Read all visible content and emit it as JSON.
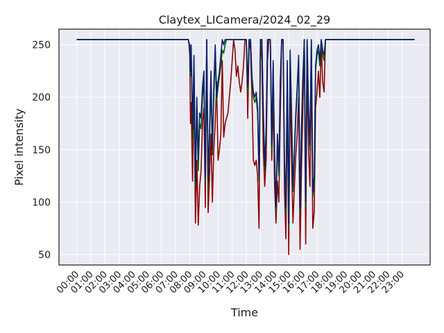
{
  "chart_data": {
    "type": "line",
    "title": "Claytex_LICamera/2024_02_29",
    "xlabel": "Time",
    "ylabel": "Pixel intensity",
    "xlim_hours": [
      -1.25,
      25.0
    ],
    "ylim": [
      40,
      265
    ],
    "grid": true,
    "legend": "none",
    "x_tick_labels": [
      "00:00",
      "01:00",
      "02:00",
      "03:00",
      "04:00",
      "05:00",
      "06:00",
      "07:00",
      "08:00",
      "09:00",
      "10:00",
      "11:00",
      "12:00",
      "13:00",
      "14:00",
      "15:00",
      "16:00",
      "17:00",
      "18:00",
      "19:00",
      "20:00",
      "21:00",
      "22:00",
      "23:00"
    ],
    "y_ticks": [
      50,
      100,
      150,
      200,
      250
    ],
    "colors": {
      "background": "#eaeaf2",
      "grid": "#ffffff",
      "red": "#8b0000",
      "green": "#006400",
      "blue": "#0a1f6e"
    },
    "series": [
      {
        "color": "#8b0000",
        "x": [
          0.0,
          7.9,
          7.95,
          8.0,
          8.05,
          8.1,
          8.2,
          8.3,
          8.4,
          8.5,
          8.6,
          8.7,
          8.8,
          8.9,
          9.0,
          9.1,
          9.2,
          9.3,
          9.4,
          9.5,
          9.6,
          9.7,
          9.8,
          9.9,
          10.0,
          10.1,
          10.2,
          10.3,
          10.4,
          10.5,
          10.6,
          10.7,
          10.8,
          10.9,
          11.0,
          11.1,
          11.2,
          11.3,
          11.4,
          11.5,
          11.6,
          11.7,
          11.8,
          11.9,
          12.0,
          12.1,
          12.2,
          12.3,
          12.4,
          12.5,
          12.6,
          12.7,
          12.8,
          12.9,
          13.0,
          13.1,
          13.2,
          13.3,
          13.4,
          13.5,
          13.6,
          13.7,
          13.8,
          13.9,
          14.0,
          14.1,
          14.2,
          14.3,
          14.4,
          14.5,
          14.6,
          14.7,
          14.8,
          14.9,
          15.0,
          15.1,
          15.2,
          15.3,
          15.4,
          15.5,
          15.6,
          15.7,
          15.8,
          15.9,
          16.0,
          16.1,
          16.2,
          16.3,
          16.4,
          16.5,
          16.6,
          16.7,
          16.8,
          16.9,
          17.0,
          17.1,
          17.2,
          17.3,
          17.4,
          17.5,
          17.6,
          17.7,
          17.8,
          17.9,
          18.0,
          23.9
        ],
        "values": [
          255,
          255,
          250,
          240,
          175,
          195,
          120,
          215,
          80,
          140,
          78,
          115,
          130,
          175,
          190,
          95,
          255,
          90,
          125,
          165,
          100,
          150,
          175,
          215,
          140,
          150,
          165,
          235,
          162,
          175,
          180,
          185,
          200,
          215,
          235,
          255,
          245,
          220,
          230,
          215,
          205,
          215,
          230,
          255,
          255,
          180,
          255,
          245,
          200,
          140,
          135,
          140,
          125,
          75,
          255,
          235,
          150,
          115,
          140,
          235,
          255,
          255,
          140,
          200,
          115,
          80,
          120,
          100,
          180,
          255,
          255,
          110,
          65,
          200,
          50,
          215,
          140,
          80,
          115,
          145,
          165,
          200,
          55,
          130,
          190,
          255,
          60,
          230,
          150,
          115,
          235,
          75,
          90,
          190,
          205,
          225,
          200,
          250,
          215,
          205,
          255,
          255,
          255,
          255,
          255,
          255
        ],
        "note": ""
      },
      {
        "color": "#006400",
        "x": [
          0.0,
          7.9,
          7.95,
          8.0,
          8.05,
          8.1,
          8.2,
          8.3,
          8.4,
          8.5,
          8.6,
          8.7,
          8.8,
          8.9,
          9.0,
          9.1,
          9.2,
          9.3,
          9.4,
          9.5,
          9.6,
          9.7,
          9.8,
          9.9,
          10.0,
          10.1,
          10.2,
          10.3,
          10.4,
          10.5,
          10.6,
          10.7,
          10.8,
          10.9,
          11.0,
          11.1,
          11.2,
          11.3,
          11.4,
          11.5,
          11.6,
          11.7,
          11.8,
          11.9,
          12.0,
          12.1,
          12.2,
          12.3,
          12.4,
          12.5,
          12.6,
          12.7,
          12.8,
          12.9,
          13.0,
          13.1,
          13.2,
          13.3,
          13.4,
          13.5,
          13.6,
          13.7,
          13.8,
          13.9,
          14.0,
          14.1,
          14.2,
          14.3,
          14.4,
          14.5,
          14.6,
          14.7,
          14.8,
          14.9,
          15.0,
          15.1,
          15.2,
          15.3,
          15.4,
          15.5,
          15.6,
          15.7,
          15.8,
          15.9,
          16.0,
          16.1,
          16.2,
          16.3,
          16.4,
          16.5,
          16.6,
          16.7,
          16.8,
          16.9,
          17.0,
          17.1,
          17.2,
          17.3,
          17.4,
          17.5,
          17.6,
          17.7,
          17.8,
          17.9,
          18.0,
          23.9
        ],
        "values": [
          255,
          255,
          252,
          248,
          220,
          245,
          160,
          230,
          115,
          190,
          130,
          175,
          170,
          200,
          215,
          120,
          255,
          115,
          160,
          215,
          145,
          200,
          240,
          195,
          210,
          220,
          230,
          245,
          242,
          250,
          255,
          255,
          255,
          255,
          255,
          255,
          255,
          255,
          255,
          255,
          255,
          255,
          255,
          255,
          255,
          205,
          255,
          255,
          215,
          200,
          195,
          200,
          185,
          120,
          255,
          255,
          185,
          130,
          165,
          255,
          255,
          255,
          150,
          230,
          140,
          90,
          160,
          125,
          210,
          255,
          255,
          135,
          90,
          230,
          75,
          240,
          180,
          110,
          145,
          180,
          205,
          235,
          90,
          165,
          215,
          255,
          95,
          255,
          185,
          150,
          255,
          105,
          120,
          225,
          240,
          245,
          230,
          255,
          240,
          235,
          255,
          255,
          255,
          255,
          255,
          255
        ],
        "note": ""
      },
      {
        "color": "#0a1f6e",
        "x": [
          0.0,
          7.9,
          7.95,
          8.0,
          8.05,
          8.1,
          8.2,
          8.3,
          8.4,
          8.5,
          8.6,
          8.7,
          8.8,
          8.9,
          9.0,
          9.1,
          9.2,
          9.3,
          9.4,
          9.5,
          9.6,
          9.7,
          9.8,
          9.9,
          10.0,
          10.1,
          10.2,
          10.3,
          10.4,
          10.5,
          10.6,
          10.7,
          10.8,
          10.9,
          11.0,
          11.1,
          11.2,
          11.3,
          11.4,
          11.5,
          11.6,
          11.7,
          11.8,
          11.9,
          12.0,
          12.1,
          12.2,
          12.3,
          12.4,
          12.5,
          12.6,
          12.7,
          12.8,
          12.9,
          13.0,
          13.1,
          13.2,
          13.3,
          13.4,
          13.5,
          13.6,
          13.7,
          13.8,
          13.9,
          14.0,
          14.1,
          14.2,
          14.3,
          14.4,
          14.5,
          14.6,
          14.7,
          14.8,
          14.9,
          15.0,
          15.1,
          15.2,
          15.3,
          15.4,
          15.5,
          15.6,
          15.7,
          15.8,
          15.9,
          16.0,
          16.1,
          16.2,
          16.3,
          16.4,
          16.5,
          16.6,
          16.7,
          16.8,
          16.9,
          17.0,
          17.1,
          17.2,
          17.3,
          17.4,
          17.5,
          17.6,
          17.7,
          17.8,
          17.9,
          18.0,
          23.9
        ],
        "values": [
          255,
          255,
          252,
          250,
          225,
          250,
          170,
          240,
          120,
          200,
          140,
          185,
          180,
          210,
          225,
          125,
          255,
          120,
          170,
          225,
          150,
          210,
          250,
          200,
          215,
          225,
          240,
          255,
          250,
          255,
          255,
          255,
          255,
          255,
          255,
          255,
          255,
          255,
          255,
          255,
          255,
          255,
          255,
          255,
          255,
          210,
          255,
          255,
          220,
          205,
          200,
          205,
          190,
          125,
          255,
          255,
          190,
          135,
          170,
          255,
          255,
          255,
          155,
          235,
          145,
          95,
          165,
          130,
          215,
          255,
          255,
          140,
          95,
          235,
          80,
          245,
          185,
          115,
          150,
          185,
          210,
          240,
          95,
          170,
          220,
          255,
          100,
          255,
          190,
          155,
          255,
          110,
          125,
          230,
          245,
          250,
          235,
          255,
          245,
          240,
          255,
          255,
          255,
          255,
          255,
          255
        ]
      }
    ]
  }
}
